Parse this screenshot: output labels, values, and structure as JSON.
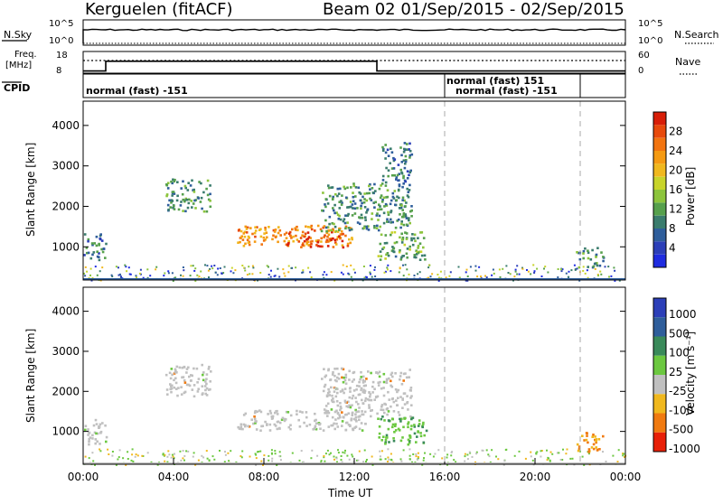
{
  "header": {
    "station": "Kerguelen (fitACF)",
    "beam_dates": "Beam 02  01/Sep/2015 - 02/Sep/2015"
  },
  "top_panel": {
    "nsky_label": "N.Sky",
    "nsky_ticks": [
      "10^5",
      "10^0"
    ],
    "nsearch_label": "N.Search",
    "nsearch_ticks": [
      "10^5",
      "10^0"
    ],
    "freq_label_line1": "Freq.",
    "freq_label_line2": "[MHz]",
    "freq_ticks": [
      "18",
      "8"
    ],
    "nave_label": "Nave",
    "nave_ticks": [
      "60",
      "0"
    ],
    "cpid_label": "CPID",
    "cpid_segments": [
      "normal (fast) -151",
      "normal (fast) 151",
      "normal (fast) -151"
    ],
    "frequency_mhz": [
      {
        "t": 0.0,
        "f": 9.0
      },
      {
        "t": 1.0,
        "f": 13.5
      },
      {
        "t": 13.0,
        "f": 9.0
      },
      {
        "t": 24.0,
        "f": 9.0
      }
    ],
    "nave_dotted_level": 23
  },
  "chart_data": [
    {
      "type": "heatmap",
      "name": "power",
      "ylabel": "Slant Range [km]",
      "yticks": [
        "1000",
        "2000",
        "3000",
        "4000"
      ],
      "ylim": [
        180,
        4600
      ],
      "colorbar_label": "Power [dB]",
      "colorbar_ticks": [
        "4",
        "8",
        "12",
        "16",
        "20",
        "24",
        "28"
      ],
      "colorbar_range": [
        0,
        32
      ],
      "colorbar_colors": [
        "#1f2ce0",
        "#2c3fb8",
        "#2f5e9b",
        "#3a7c6d",
        "#56a04c",
        "#8cc43c",
        "#c8d42a",
        "#f0b81e",
        "#f59a12",
        "#f27410",
        "#e84a0c",
        "#d81e08"
      ],
      "echo_regions": [
        {
          "t0": 0.0,
          "t1": 1.0,
          "r0": 700,
          "r1": 1350,
          "power": 8
        },
        {
          "t0": 3.6,
          "t1": 5.6,
          "r0": 1900,
          "r1": 2700,
          "power": 10
        },
        {
          "t0": 6.8,
          "t1": 12.0,
          "r0": 1050,
          "r1": 1550,
          "power": 24
        },
        {
          "t0": 9.0,
          "t1": 11.5,
          "r0": 1000,
          "r1": 1400,
          "power": 29
        },
        {
          "t0": 10.5,
          "t1": 14.5,
          "r0": 1400,
          "r1": 2600,
          "power": 10
        },
        {
          "t0": 13.0,
          "t1": 15.2,
          "r0": 700,
          "r1": 1400,
          "power": 12
        },
        {
          "t0": 13.2,
          "t1": 14.5,
          "r0": 2600,
          "r1": 3600,
          "power": 8
        },
        {
          "t0": 21.8,
          "t1": 23.0,
          "r0": 500,
          "r1": 1000,
          "power": 10
        }
      ]
    },
    {
      "type": "heatmap",
      "name": "velocity",
      "xlabel": "Time UT",
      "xticks": [
        "00:00",
        "04:00",
        "08:00",
        "12:00",
        "16:00",
        "20:00",
        "00:00"
      ],
      "xlim_hours": [
        0,
        24
      ],
      "ylabel": "Slant Range [km]",
      "yticks": [
        "1000",
        "2000",
        "3000",
        "4000"
      ],
      "ylim": [
        180,
        4600
      ],
      "colorbar_label": "Velocity [m s⁻¹]",
      "colorbar_ticks": [
        "1000",
        "500",
        "100",
        "25",
        "-25",
        "-100",
        "-500",
        "-1000"
      ],
      "colorbar_colors": [
        "#2c3fb8",
        "#2f5e9b",
        "#3a8a5a",
        "#6cc840",
        "#c0c0c0",
        "#f0b81e",
        "#f07a10",
        "#e82008"
      ],
      "echo_regions": [
        {
          "t0": 0.0,
          "t1": 1.0,
          "r0": 700,
          "r1": 1350,
          "velocity": 0
        },
        {
          "t0": 3.6,
          "t1": 5.6,
          "r0": 1900,
          "r1": 2700,
          "velocity": 0
        },
        {
          "t0": 6.8,
          "t1": 12.5,
          "r0": 1050,
          "r1": 1550,
          "velocity": 0
        },
        {
          "t0": 10.5,
          "t1": 14.5,
          "r0": 1400,
          "r1": 2600,
          "velocity": 0
        },
        {
          "t0": 13.0,
          "t1": 15.2,
          "r0": 700,
          "r1": 1400,
          "velocity": 150
        },
        {
          "t0": 21.8,
          "t1": 23.0,
          "r0": 500,
          "r1": 1000,
          "velocity": -300
        }
      ]
    }
  ]
}
